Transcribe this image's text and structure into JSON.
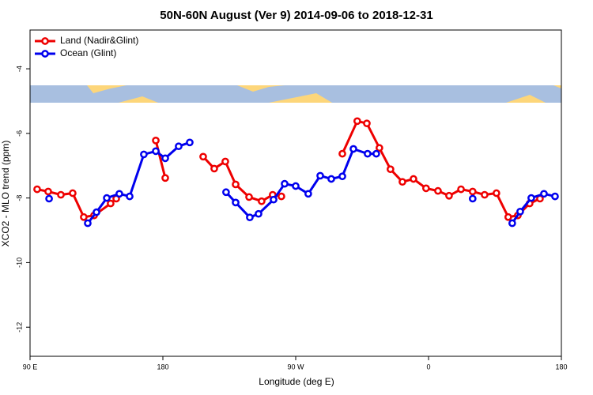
{
  "chart_data": {
    "type": "line",
    "title": "50N-60N August (Ver 9)   2014-09-06 to 2018-12-31",
    "x_label": "Longitude (deg E)",
    "y_label": "XCO2 - MLO trend (ppm)",
    "xlim": [
      90,
      450
    ],
    "xticks": [
      {
        "value": 90,
        "label": "90 E"
      },
      {
        "value": 180,
        "label": "180"
      },
      {
        "value": 270,
        "label": "90 W"
      },
      {
        "value": 360,
        "label": "0"
      },
      {
        "value": 450,
        "label": "180"
      }
    ],
    "ylim": [
      -12.9,
      -2.8
    ],
    "yticks": [
      -12,
      -10,
      -8,
      -6,
      -4
    ],
    "legend": "top-left",
    "series": [
      {
        "name": "Land (Nadir&Glint)",
        "color": "#ee0000",
        "x": [
          94.8,
          102.3,
          110.9,
          118.9,
          126.4,
          133.4,
          144.6,
          148.4,
          null,
          175.2,
          181.6,
          null,
          207.3,
          214.8,
          222.3,
          229.3,
          238.4,
          246.9,
          254.4,
          260.3,
          null,
          301.6,
          311.7,
          318.2,
          326.7,
          334.2,
          342.3,
          349.8,
          358.3,
          366.4,
          373.9,
          382,
          389.9,
          398,
          406,
          414,
          420.5,
          428.5,
          435.5
        ],
        "values": [
          -7.73,
          -7.8,
          -7.9,
          -7.85,
          -8.59,
          -8.54,
          -8.17,
          -8.02,
          null,
          -6.22,
          -7.38,
          null,
          -6.72,
          -7.09,
          -6.87,
          -7.58,
          -7.97,
          -8.1,
          -7.9,
          -7.95,
          null,
          -6.63,
          -5.62,
          -5.69,
          -6.45,
          -7.11,
          -7.5,
          -7.41,
          -7.7,
          -7.78,
          -7.93,
          -7.73,
          -7.8,
          -7.9,
          -7.85,
          -8.59,
          -8.54,
          -8.17,
          -8.02
        ]
      },
      {
        "name": "Ocean (Glint)",
        "color": "#0000ee",
        "x": [
          102.9,
          null,
          129.1,
          135,
          142,
          150.5,
          157.5,
          167.1,
          175.2,
          181.6,
          190.7,
          198.2,
          null,
          222.8,
          229.3,
          238.9,
          244.8,
          255,
          262.5,
          270,
          278.5,
          286.6,
          294.1,
          301.6,
          309.1,
          318.7,
          324.6,
          null,
          389.9,
          null,
          416.7,
          422.1,
          429.6,
          438.2,
          445.7
        ],
        "values": [
          -8.02,
          null,
          -8.78,
          -8.44,
          -8,
          -7.87,
          -7.95,
          -6.65,
          -6.55,
          -6.77,
          -6.4,
          -6.28,
          null,
          -7.82,
          -8.14,
          -8.6,
          -8.49,
          -8.05,
          -7.56,
          -7.63,
          -7.87,
          -7.31,
          -7.41,
          -7.33,
          -6.48,
          -6.63,
          -6.63,
          null,
          -8.02,
          null,
          -8.78,
          -8.42,
          -8,
          -7.87,
          -7.95
        ]
      }
    ]
  }
}
